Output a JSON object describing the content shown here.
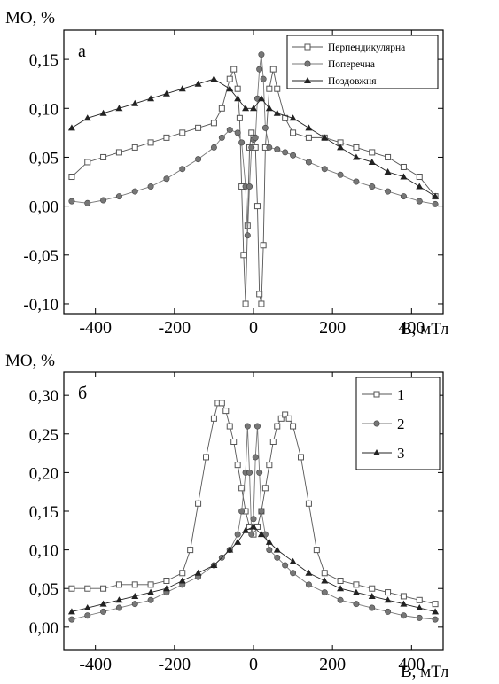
{
  "chart_data": [
    {
      "type": "scatter",
      "panel_label": "a",
      "ylabel": "МО, %",
      "xlabel": "B, мТл",
      "xlim": [
        -480,
        480
      ],
      "ylim": [
        -0.11,
        0.18
      ],
      "xticks": [
        -400,
        -200,
        0,
        200,
        400
      ],
      "xtick_labels": [
        "-400",
        "-200",
        "0",
        "200",
        "400"
      ],
      "yticks": [
        -0.1,
        -0.05,
        0.0,
        0.05,
        0.1,
        0.15
      ],
      "ytick_labels": [
        "-0,10",
        "-0,05",
        "0,00",
        "0,05",
        "0,10",
        "0,15"
      ],
      "legend_position": "top-right",
      "series": [
        {
          "name": "Перпендикулярна",
          "marker": "square",
          "color": "#555555",
          "x": [
            -460,
            -420,
            -380,
            -340,
            -300,
            -260,
            -220,
            -180,
            -140,
            -100,
            -80,
            -60,
            -50,
            -40,
            -35,
            -30,
            -25,
            -20,
            -15,
            -10,
            -5,
            0,
            5,
            10,
            15,
            20,
            25,
            30,
            40,
            50,
            60,
            80,
            100,
            140,
            180,
            220,
            260,
            300,
            340,
            380,
            420,
            460
          ],
          "y": [
            0.03,
            0.045,
            0.05,
            0.055,
            0.06,
            0.065,
            0.07,
            0.075,
            0.08,
            0.085,
            0.1,
            0.13,
            0.14,
            0.12,
            0.09,
            0.02,
            -0.05,
            -0.1,
            -0.02,
            0.06,
            0.075,
            0.07,
            0.06,
            0.0,
            -0.09,
            -0.1,
            -0.04,
            0.06,
            0.12,
            0.14,
            0.12,
            0.09,
            0.075,
            0.07,
            0.07,
            0.065,
            0.06,
            0.055,
            0.05,
            0.04,
            0.03,
            0.01
          ]
        },
        {
          "name": "Поперечна",
          "marker": "circle",
          "color": "#777777",
          "x": [
            -460,
            -420,
            -380,
            -340,
            -300,
            -260,
            -220,
            -180,
            -140,
            -100,
            -80,
            -60,
            -40,
            -30,
            -20,
            -15,
            -10,
            -5,
            0,
            5,
            10,
            15,
            20,
            25,
            30,
            40,
            60,
            80,
            100,
            140,
            180,
            220,
            260,
            300,
            340,
            380,
            420,
            460
          ],
          "y": [
            0.005,
            0.003,
            0.006,
            0.01,
            0.015,
            0.02,
            0.028,
            0.038,
            0.048,
            0.06,
            0.07,
            0.078,
            0.075,
            0.065,
            0.02,
            -0.03,
            0.02,
            0.06,
            0.068,
            0.07,
            0.11,
            0.14,
            0.155,
            0.13,
            0.08,
            0.06,
            0.058,
            0.055,
            0.052,
            0.045,
            0.038,
            0.032,
            0.025,
            0.02,
            0.015,
            0.01,
            0.005,
            0.002
          ]
        },
        {
          "name": "Поздовжня",
          "marker": "triangle",
          "color": "#222222",
          "x": [
            -460,
            -420,
            -380,
            -340,
            -300,
            -260,
            -220,
            -180,
            -140,
            -100,
            -60,
            -40,
            -20,
            0,
            20,
            40,
            60,
            100,
            140,
            180,
            220,
            260,
            300,
            340,
            380,
            420,
            460
          ],
          "y": [
            0.08,
            0.09,
            0.095,
            0.1,
            0.105,
            0.11,
            0.115,
            0.12,
            0.125,
            0.13,
            0.12,
            0.11,
            0.1,
            0.1,
            0.11,
            0.1,
            0.095,
            0.09,
            0.08,
            0.07,
            0.06,
            0.05,
            0.045,
            0.035,
            0.03,
            0.02,
            0.01
          ]
        }
      ]
    },
    {
      "type": "scatter",
      "panel_label": "б",
      "ylabel": "МО, %",
      "xlabel": "B, мТл",
      "xlim": [
        -480,
        480
      ],
      "ylim": [
        -0.03,
        0.33
      ],
      "xticks": [
        -400,
        -200,
        0,
        200,
        400
      ],
      "xtick_labels": [
        "-400",
        "-200",
        "0",
        "200",
        "400"
      ],
      "yticks": [
        0.0,
        0.05,
        0.1,
        0.15,
        0.2,
        0.25,
        0.3
      ],
      "ytick_labels": [
        "0,00",
        "0,05",
        "0,10",
        "0,15",
        "0,20",
        "0,25",
        "0,30"
      ],
      "legend_position": "top-right",
      "series": [
        {
          "name": "1",
          "marker": "square",
          "color": "#555555",
          "x": [
            -460,
            -420,
            -380,
            -340,
            -300,
            -260,
            -220,
            -180,
            -160,
            -140,
            -120,
            -100,
            -90,
            -80,
            -70,
            -60,
            -50,
            -40,
            -30,
            -20,
            -10,
            0,
            10,
            20,
            30,
            40,
            50,
            60,
            70,
            80,
            90,
            100,
            120,
            140,
            160,
            180,
            220,
            260,
            300,
            340,
            380,
            420,
            460
          ],
          "y": [
            0.05,
            0.05,
            0.05,
            0.055,
            0.055,
            0.055,
            0.06,
            0.07,
            0.1,
            0.16,
            0.22,
            0.27,
            0.29,
            0.29,
            0.28,
            0.26,
            0.24,
            0.21,
            0.18,
            0.15,
            0.13,
            0.12,
            0.13,
            0.15,
            0.18,
            0.21,
            0.24,
            0.26,
            0.27,
            0.275,
            0.27,
            0.26,
            0.22,
            0.16,
            0.1,
            0.07,
            0.06,
            0.055,
            0.05,
            0.045,
            0.04,
            0.035,
            0.03
          ]
        },
        {
          "name": "2",
          "marker": "circle",
          "color": "#777777",
          "x": [
            -460,
            -420,
            -380,
            -340,
            -300,
            -260,
            -220,
            -180,
            -140,
            -100,
            -80,
            -60,
            -40,
            -30,
            -20,
            -15,
            -10,
            -5,
            0,
            5,
            10,
            15,
            20,
            30,
            40,
            60,
            80,
            100,
            140,
            180,
            220,
            260,
            300,
            340,
            380,
            420,
            460
          ],
          "y": [
            0.01,
            0.015,
            0.02,
            0.025,
            0.03,
            0.035,
            0.045,
            0.055,
            0.065,
            0.08,
            0.09,
            0.1,
            0.12,
            0.15,
            0.2,
            0.26,
            0.2,
            0.12,
            0.14,
            0.22,
            0.26,
            0.2,
            0.15,
            0.12,
            0.1,
            0.09,
            0.08,
            0.07,
            0.055,
            0.045,
            0.035,
            0.03,
            0.025,
            0.02,
            0.015,
            0.012,
            0.01
          ]
        },
        {
          "name": "3",
          "marker": "triangle",
          "color": "#222222",
          "x": [
            -460,
            -420,
            -380,
            -340,
            -300,
            -260,
            -220,
            -180,
            -140,
            -100,
            -60,
            -40,
            -20,
            0,
            20,
            40,
            60,
            100,
            140,
            180,
            220,
            260,
            300,
            340,
            380,
            420,
            460
          ],
          "y": [
            0.02,
            0.025,
            0.03,
            0.035,
            0.04,
            0.045,
            0.05,
            0.06,
            0.07,
            0.08,
            0.1,
            0.11,
            0.125,
            0.13,
            0.12,
            0.11,
            0.1,
            0.085,
            0.07,
            0.06,
            0.05,
            0.045,
            0.04,
            0.035,
            0.03,
            0.025,
            0.02
          ]
        }
      ]
    }
  ]
}
